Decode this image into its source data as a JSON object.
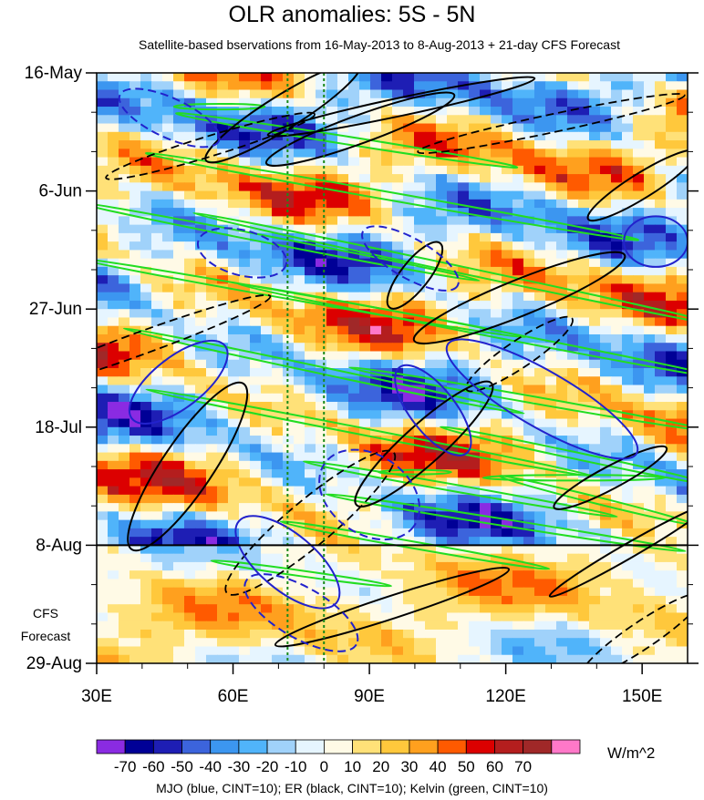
{
  "chart_data": {
    "type": "heatmap",
    "title": "OLR anomalies: 5S - 5N",
    "subtitle": "Satellite-based bservations from 16-May-2013 to 8-Aug-2013 + 21-day CFS Forecast",
    "x_axis": {
      "range": [
        30,
        160
      ],
      "ticks": [
        30,
        60,
        90,
        120,
        150
      ],
      "tick_labels": [
        "30E",
        "60E",
        "90E",
        "120E",
        "150E"
      ]
    },
    "y_axis": {
      "range_days": [
        0,
        105
      ],
      "ticks": [
        0,
        21,
        42,
        63,
        84,
        105
      ],
      "tick_labels": [
        "16-May",
        "6-Jun",
        "27-Jun",
        "18-Jul",
        "8-Aug",
        "29-Aug"
      ]
    },
    "forecast": {
      "start_day": 84,
      "label_line1": "CFS",
      "label_line2": "Forecast"
    },
    "reference_lines_lon": [
      72,
      80
    ],
    "colorbar": {
      "levels": [
        "-70",
        "-60",
        "-50",
        "-40",
        "-30",
        "-20",
        "-10",
        "0",
        "10",
        "20",
        "30",
        "40",
        "50",
        "60",
        "70"
      ],
      "colors": [
        "#8a2be2",
        "#000096",
        "#1e1eb4",
        "#3c64dc",
        "#3c96f0",
        "#50b4fa",
        "#a0d2fa",
        "#e6f5ff",
        "#fffae6",
        "#ffe178",
        "#ffc83c",
        "#ffa01e",
        "#ff5a00",
        "#dc0000",
        "#b41e1e",
        "#a02828",
        "#ff78c8"
      ],
      "units": "W/m^2"
    },
    "contours": [
      {
        "name": "MJO",
        "color": "#2222cc",
        "cint": 10
      },
      {
        "name": "ER",
        "color": "#000000",
        "cint": 10
      },
      {
        "name": "Kelvin",
        "color": "#22dd22",
        "cint": 10
      }
    ],
    "footer": "MJO (blue, CINT=10); ER (black, CINT=10); Kelvin (green, CINT=10)"
  }
}
